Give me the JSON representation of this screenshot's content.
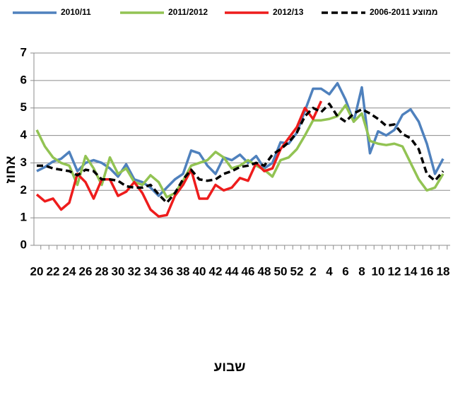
{
  "chart_data": {
    "type": "line",
    "x_label": "שבוע",
    "y_label": "אחוז",
    "categories": [
      "20",
      null,
      "22",
      null,
      "24",
      null,
      "26",
      null,
      "28",
      null,
      "30",
      null,
      "32",
      null,
      "34",
      null,
      "36",
      null,
      "38",
      null,
      "40",
      null,
      "42",
      null,
      "44",
      null,
      "46",
      null,
      "48",
      null,
      "50",
      null,
      "52",
      null,
      "2",
      null,
      "4",
      null,
      "6",
      null,
      "8",
      null,
      "10",
      null,
      "12",
      null,
      "14",
      null,
      "16",
      null,
      "18"
    ],
    "ylim": [
      0,
      7
    ],
    "yticks": [
      0,
      1,
      2,
      3,
      4,
      5,
      6,
      7
    ],
    "grid": true,
    "legend": "top",
    "series": [
      {
        "name": "2010/11",
        "color": "#4f81bd",
        "dash": false,
        "values": [
          2.7,
          2.85,
          3.05,
          3.15,
          3.4,
          2.7,
          3.0,
          3.1,
          3.0,
          2.8,
          2.5,
          2.95,
          2.4,
          2.3,
          2.1,
          1.8,
          2.1,
          2.4,
          2.6,
          3.45,
          3.35,
          2.9,
          2.6,
          3.2,
          3.1,
          3.3,
          3.0,
          3.25,
          2.8,
          3.0,
          3.75,
          3.7,
          4.1,
          4.9,
          5.7,
          5.7,
          5.5,
          5.9,
          5.3,
          4.5,
          5.75,
          3.35,
          4.15,
          4.0,
          4.2,
          4.75,
          4.95,
          4.5,
          3.7,
          2.6,
          3.15
        ]
      },
      {
        "name": "2011/2012",
        "color": "#92c353",
        "dash": false,
        "values": [
          4.2,
          3.6,
          3.2,
          3.0,
          2.9,
          2.2,
          3.25,
          2.8,
          2.2,
          3.2,
          2.6,
          2.8,
          2.3,
          2.2,
          2.55,
          2.3,
          1.75,
          1.9,
          2.35,
          2.9,
          3.0,
          3.1,
          3.4,
          3.2,
          2.8,
          2.9,
          3.1,
          2.9,
          2.75,
          2.5,
          3.1,
          3.2,
          3.5,
          4.0,
          4.55,
          4.55,
          4.6,
          4.7,
          5.1,
          4.5,
          4.8,
          3.8,
          3.7,
          3.65,
          3.7,
          3.6,
          3.0,
          2.4,
          2.0,
          2.1,
          2.6
        ]
      },
      {
        "name": "2012/13",
        "color": "#ee1c1c",
        "dash": false,
        "values": [
          1.85,
          1.6,
          1.7,
          1.3,
          1.55,
          2.6,
          2.3,
          1.7,
          2.4,
          2.4,
          1.8,
          1.95,
          2.3,
          1.9,
          1.3,
          1.05,
          1.1,
          1.8,
          2.2,
          2.75,
          1.7,
          1.7,
          2.2,
          2.0,
          2.1,
          2.45,
          2.35,
          3.0,
          2.7,
          2.8,
          3.5,
          3.9,
          4.3,
          5.0,
          4.6,
          5.25,
          null,
          null,
          null,
          null,
          null,
          null,
          null,
          null,
          null,
          null,
          null,
          null,
          null,
          null,
          null
        ]
      },
      {
        "name": "ממוצע 2006-2011",
        "color": "#000000",
        "dash": true,
        "values": [
          2.9,
          2.9,
          2.8,
          2.75,
          2.7,
          2.55,
          2.75,
          2.7,
          2.4,
          2.4,
          2.35,
          2.15,
          2.1,
          2.1,
          2.2,
          1.85,
          1.55,
          1.9,
          2.4,
          2.75,
          2.4,
          2.35,
          2.4,
          2.6,
          2.7,
          2.85,
          2.9,
          3.0,
          2.9,
          3.3,
          3.5,
          3.75,
          4.1,
          4.7,
          5.0,
          4.85,
          5.15,
          4.7,
          4.5,
          4.8,
          4.95,
          4.8,
          4.6,
          4.35,
          4.4,
          4.05,
          3.9,
          3.5,
          2.6,
          2.35,
          2.7
        ]
      }
    ]
  }
}
